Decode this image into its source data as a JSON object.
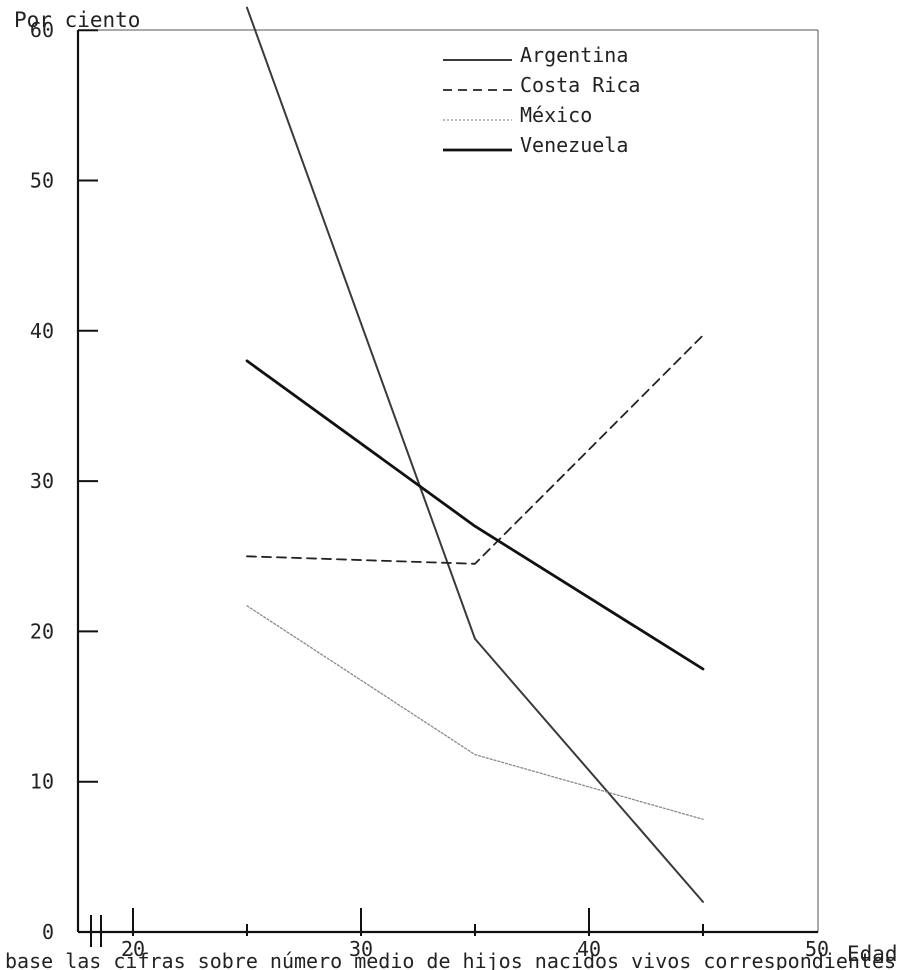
{
  "chart_data": {
    "type": "line",
    "ylabel": "Por ciento",
    "xlabel": "Edad",
    "xlim": [
      20,
      50
    ],
    "ylim": [
      0,
      60
    ],
    "y_ticks": [
      0,
      10,
      20,
      30,
      40,
      50,
      60
    ],
    "x_ticks": [
      20,
      30,
      40,
      50
    ],
    "axis_break_on_x": true,
    "grid": false,
    "legend_position": "top-right",
    "series": [
      {
        "name": "Argentina",
        "line_style": "solid",
        "color": "#3a3a3a",
        "x": [
          25,
          35,
          45
        ],
        "y": [
          61.5,
          19.5,
          2
        ]
      },
      {
        "name": "Costa Rica",
        "line_style": "dashed",
        "color": "#222222",
        "x": [
          25,
          35,
          45
        ],
        "y": [
          25,
          24.5,
          39.7
        ]
      },
      {
        "name": "México",
        "line_style": "dotted",
        "color": "#8a8a8a",
        "x": [
          25,
          35,
          45
        ],
        "y": [
          21.7,
          11.8,
          7.5
        ]
      },
      {
        "name": "Venezuela",
        "line_style": "solid-thick",
        "color": "#111111",
        "x": [
          25,
          35,
          45
        ],
        "y": [
          38,
          27,
          17.5
        ]
      }
    ]
  },
  "caption": "base las cifras sobre número medio de hijos nacidos vivos correspondientes"
}
